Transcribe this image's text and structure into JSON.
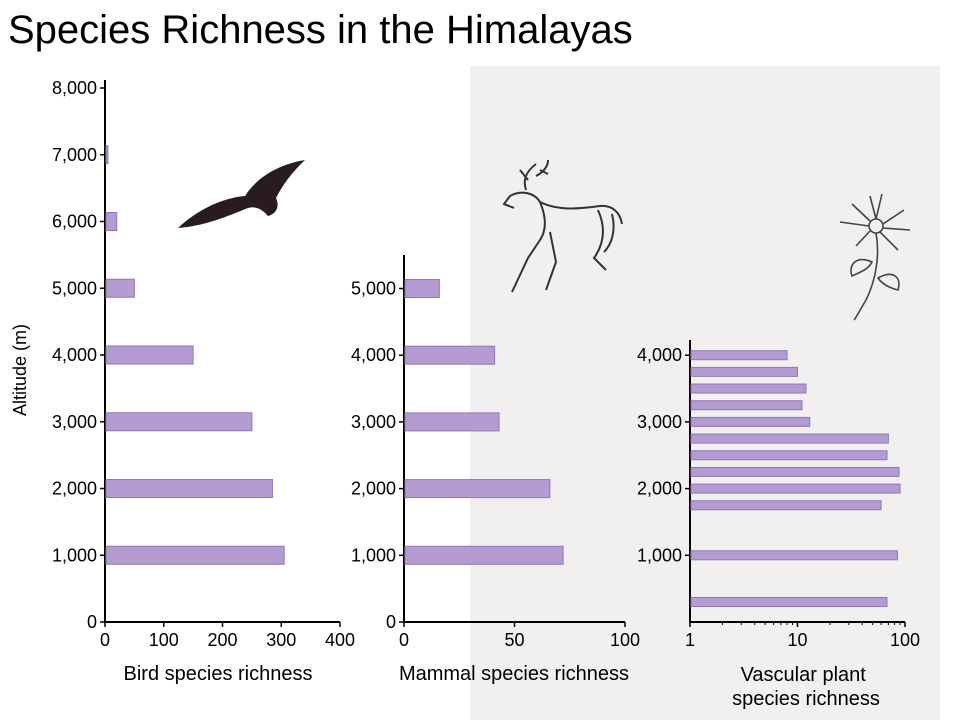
{
  "title": "Species Richness in the Himalayas",
  "colors": {
    "bar": "#b49cd2",
    "bar_stroke": "#8f78b1",
    "axis": "#000000",
    "background_page": "#f1f0ee"
  },
  "icons": {
    "bird": "bird-silhouette-icon",
    "mammal": "deer-sketch-icon",
    "plant": "flower-sketch-icon"
  },
  "chart_data": [
    {
      "type": "bar",
      "orientation": "horizontal",
      "ylabel": "Altitude (m)",
      "xlabel": "Bird species richness",
      "xlim": [
        0,
        400
      ],
      "ylim": [
        0,
        8000
      ],
      "xticks": [
        "0",
        "100",
        "200",
        "300",
        "400"
      ],
      "yticks": [
        "0",
        "1,000",
        "2,000",
        "3,000",
        "4,000",
        "5,000",
        "6,000",
        "7,000",
        "8,000"
      ],
      "altitudes": [
        1000,
        2000,
        3000,
        4000,
        5000,
        6000,
        7000
      ],
      "values": [
        305,
        285,
        250,
        150,
        50,
        20,
        5
      ]
    },
    {
      "type": "bar",
      "orientation": "horizontal",
      "xlabel": "Mammal species richness",
      "xlim": [
        0,
        100
      ],
      "ylim": [
        0,
        5000
      ],
      "xticks": [
        "0",
        "50",
        "100"
      ],
      "yticks": [
        "0",
        "1,000",
        "2,000",
        "3,000",
        "4,000",
        "5,000"
      ],
      "altitudes": [
        1000,
        2000,
        3000,
        4000,
        5000
      ],
      "values": [
        72,
        66,
        43,
        41,
        16
      ]
    },
    {
      "type": "bar",
      "orientation": "horizontal",
      "xscale": "log",
      "xlabel": "Vascular plant species richness",
      "xlim": [
        1,
        100
      ],
      "ylim": [
        0,
        4200
      ],
      "xticks": [
        "1",
        "10",
        "100"
      ],
      "yticks": [
        "1,000",
        "2,000",
        "3,000",
        "4,000"
      ],
      "altitudes": [
        300,
        1000,
        1750,
        2000,
        2250,
        2500,
        2750,
        3000,
        3250,
        3500,
        3750,
        4000
      ],
      "values": [
        68,
        85,
        60,
        90,
        88,
        68,
        70,
        13,
        11,
        12,
        10,
        8
      ]
    }
  ]
}
